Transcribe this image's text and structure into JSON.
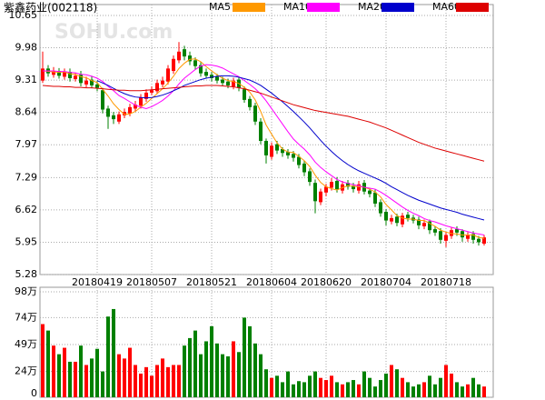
{
  "chart_data": {
    "type": "candlestick",
    "title": "紫鑫药业(002118)",
    "watermark": "SOHU.com",
    "categories": [
      null,
      null,
      null,
      null,
      null,
      null,
      null,
      null,
      null,
      null,
      "20180419",
      null,
      null,
      null,
      null,
      null,
      null,
      null,
      null,
      null,
      "20180507",
      null,
      null,
      null,
      null,
      null,
      null,
      null,
      null,
      null,
      null,
      "20180521",
      null,
      null,
      null,
      null,
      null,
      null,
      null,
      null,
      null,
      null,
      "20180604",
      null,
      null,
      null,
      null,
      null,
      null,
      null,
      null,
      null,
      "20180620",
      null,
      null,
      null,
      null,
      null,
      null,
      null,
      null,
      null,
      null,
      "20180704",
      null,
      null,
      null,
      null,
      null,
      null,
      null,
      null,
      null,
      null,
      "20180718",
      null,
      null,
      null,
      null,
      null,
      null,
      null
    ],
    "open": [
      9.3,
      9.55,
      9.42,
      9.5,
      9.38,
      9.48,
      9.33,
      9.42,
      9.22,
      9.32,
      9.22,
      9.1,
      8.72,
      8.58,
      8.45,
      8.58,
      8.62,
      8.72,
      8.78,
      8.92,
      9.05,
      9.08,
      9.22,
      9.28,
      9.5,
      9.72,
      9.95,
      9.82,
      9.72,
      9.62,
      9.48,
      9.42,
      9.38,
      9.32,
      9.28,
      9.18,
      9.32,
      9.12,
      8.92,
      8.78,
      8.45,
      8.05,
      7.72,
      7.98,
      7.88,
      7.82,
      7.78,
      7.72,
      7.58,
      7.42,
      7.18,
      6.78,
      6.98,
      7.08,
      7.22,
      7.02,
      7.18,
      7.12,
      7.02,
      7.18,
      7.02,
      6.98,
      6.78,
      6.58,
      6.38,
      6.48,
      6.32,
      6.52,
      6.46,
      6.42,
      6.28,
      6.38,
      6.22,
      6.18,
      5.98,
      6.08,
      6.22,
      6.18,
      6.02,
      6.12,
      6.02,
      5.92
    ],
    "high": [
      9.9,
      9.62,
      9.58,
      9.56,
      9.55,
      9.55,
      9.46,
      9.5,
      9.38,
      9.4,
      9.3,
      9.15,
      8.78,
      8.65,
      8.66,
      8.72,
      8.82,
      8.88,
      9.02,
      9.12,
      9.18,
      9.32,
      9.38,
      9.62,
      9.82,
      10.1,
      10.02,
      9.9,
      9.78,
      9.68,
      9.55,
      9.48,
      9.44,
      9.38,
      9.34,
      9.36,
      9.38,
      9.18,
      8.98,
      8.84,
      8.52,
      8.1,
      8.02,
      8.05,
      7.92,
      7.88,
      7.84,
      7.78,
      7.64,
      7.48,
      7.25,
      7.06,
      7.16,
      7.28,
      7.3,
      7.22,
      7.24,
      7.18,
      7.22,
      7.24,
      7.08,
      7.04,
      6.84,
      6.64,
      6.52,
      6.54,
      6.56,
      6.58,
      6.52,
      6.48,
      6.42,
      6.42,
      6.28,
      6.24,
      6.16,
      6.26,
      6.28,
      6.22,
      6.16,
      6.18,
      6.08,
      6.1
    ],
    "low": [
      9.25,
      9.38,
      9.36,
      9.34,
      9.32,
      9.28,
      9.28,
      9.18,
      9.16,
      9.14,
      9.08,
      8.62,
      8.3,
      8.4,
      8.4,
      8.52,
      8.56,
      8.66,
      8.72,
      8.86,
      9.0,
      9.02,
      9.16,
      9.22,
      9.44,
      9.66,
      9.72,
      9.62,
      9.52,
      9.38,
      9.34,
      9.28,
      9.24,
      9.18,
      9.14,
      9.12,
      9.08,
      8.84,
      8.68,
      8.38,
      7.98,
      7.58,
      7.66,
      7.78,
      7.72,
      7.68,
      7.62,
      7.48,
      7.32,
      7.12,
      6.55,
      6.72,
      6.9,
      7.02,
      6.98,
      6.96,
      7.04,
      6.98,
      6.96,
      6.94,
      6.88,
      6.68,
      6.48,
      6.3,
      6.32,
      6.28,
      6.26,
      6.38,
      6.34,
      6.22,
      6.22,
      6.12,
      6.08,
      5.92,
      5.85,
      6.02,
      6.08,
      5.96,
      5.96,
      5.92,
      5.88,
      5.88
    ],
    "close": [
      9.55,
      9.45,
      9.5,
      9.4,
      9.48,
      9.35,
      9.4,
      9.25,
      9.3,
      9.2,
      9.15,
      8.7,
      8.55,
      8.5,
      8.6,
      8.65,
      8.75,
      8.8,
      8.95,
      9.05,
      9.1,
      9.25,
      9.3,
      9.55,
      9.75,
      9.9,
      9.8,
      9.7,
      9.6,
      9.45,
      9.4,
      9.35,
      9.3,
      9.25,
      9.2,
      9.3,
      9.15,
      8.9,
      8.75,
      8.45,
      8.05,
      7.75,
      7.95,
      7.85,
      7.8,
      7.75,
      7.7,
      7.55,
      7.4,
      7.2,
      6.8,
      7.0,
      7.1,
      7.2,
      7.05,
      7.15,
      7.1,
      7.05,
      7.15,
      7.0,
      6.95,
      6.75,
      6.55,
      6.4,
      6.45,
      6.35,
      6.5,
      6.45,
      6.4,
      6.3,
      6.35,
      6.2,
      6.15,
      6.0,
      6.1,
      6.2,
      6.15,
      6.05,
      6.1,
      6.0,
      5.95,
      6.05
    ],
    "up_color": "#ff0000",
    "down_color": "#008000",
    "series": [
      {
        "name": "MA5",
        "color": "#ff9900",
        "values": [
          9.5,
          9.49,
          9.48,
          9.47,
          9.48,
          9.44,
          9.43,
          9.38,
          9.36,
          9.3,
          9.26,
          9.12,
          8.98,
          8.82,
          8.7,
          8.6,
          8.61,
          8.66,
          8.75,
          8.83,
          8.93,
          9.03,
          9.13,
          9.25,
          9.39,
          9.55,
          9.66,
          9.74,
          9.75,
          9.69,
          9.59,
          9.5,
          9.42,
          9.35,
          9.3,
          9.28,
          9.24,
          9.16,
          9.06,
          8.9,
          8.66,
          8.38,
          8.19,
          8.01,
          7.88,
          7.82,
          7.81,
          7.73,
          7.64,
          7.52,
          7.34,
          7.19,
          7.1,
          7.06,
          7.03,
          7.08,
          7.12,
          7.11,
          7.1,
          7.09,
          7.05,
          6.99,
          6.89,
          6.73,
          6.62,
          6.5,
          6.45,
          6.43,
          6.43,
          6.4,
          6.4,
          6.34,
          6.28,
          6.2,
          6.16,
          6.13,
          6.12,
          6.1,
          6.1,
          6.1,
          6.05,
          6.03
        ]
      },
      {
        "name": "MA10",
        "color": "#ff00ff",
        "values": [
          9.5,
          9.5,
          9.5,
          9.49,
          9.49,
          9.47,
          9.46,
          9.43,
          9.42,
          9.39,
          9.35,
          9.28,
          9.18,
          9.09,
          8.99,
          8.93,
          8.86,
          8.79,
          8.75,
          8.72,
          8.76,
          8.82,
          8.89,
          8.98,
          9.09,
          9.23,
          9.35,
          9.44,
          9.53,
          9.6,
          9.63,
          9.62,
          9.6,
          9.56,
          9.5,
          9.44,
          9.38,
          9.3,
          9.22,
          9.13,
          9.02,
          8.88,
          8.72,
          8.56,
          8.4,
          8.24,
          8.09,
          7.98,
          7.88,
          7.76,
          7.61,
          7.5,
          7.41,
          7.33,
          7.25,
          7.2,
          7.17,
          7.14,
          7.12,
          7.09,
          7.07,
          7.05,
          6.99,
          6.92,
          6.84,
          6.76,
          6.68,
          6.61,
          6.55,
          6.5,
          6.44,
          6.4,
          6.37,
          6.33,
          6.29,
          6.26,
          6.23,
          6.2,
          6.17,
          6.14,
          6.12,
          6.1
        ]
      },
      {
        "name": "MA20",
        "color": "#0000cc",
        "values": [
          null,
          null,
          null,
          null,
          null,
          null,
          null,
          null,
          null,
          null,
          9.3,
          9.25,
          9.2,
          9.14,
          9.08,
          9.03,
          8.99,
          8.96,
          8.95,
          8.94,
          8.95,
          8.97,
          9.0,
          9.04,
          9.09,
          9.14,
          9.2,
          9.24,
          9.28,
          9.32,
          9.35,
          9.37,
          9.39,
          9.4,
          9.4,
          9.39,
          9.37,
          9.34,
          9.31,
          9.26,
          9.2,
          9.12,
          9.04,
          8.95,
          8.86,
          8.76,
          8.66,
          8.55,
          8.44,
          8.32,
          8.19,
          8.06,
          7.94,
          7.83,
          7.73,
          7.64,
          7.56,
          7.49,
          7.43,
          7.38,
          7.33,
          7.28,
          7.23,
          7.17,
          7.1,
          7.04,
          6.98,
          6.92,
          6.87,
          6.82,
          6.78,
          6.74,
          6.7,
          6.66,
          6.63,
          6.6,
          6.57,
          6.53,
          6.5,
          6.47,
          6.44,
          6.41
        ]
      },
      {
        "name": "MA60",
        "color": "#dd0000",
        "values": [
          9.2,
          9.19,
          9.18,
          9.18,
          9.17,
          9.17,
          9.16,
          9.16,
          9.15,
          9.15,
          9.14,
          9.13,
          9.12,
          9.11,
          9.1,
          9.1,
          9.09,
          9.09,
          9.09,
          9.1,
          9.11,
          9.12,
          9.13,
          9.14,
          9.15,
          9.16,
          9.17,
          9.18,
          9.19,
          9.19,
          9.2,
          9.2,
          9.2,
          9.19,
          9.18,
          9.17,
          9.15,
          9.13,
          9.1,
          9.07,
          9.04,
          9.0,
          8.96,
          8.92,
          8.88,
          8.84,
          8.8,
          8.77,
          8.74,
          8.71,
          8.68,
          8.66,
          8.64,
          8.62,
          8.6,
          8.58,
          8.56,
          8.53,
          8.5,
          8.47,
          8.44,
          8.4,
          8.36,
          8.32,
          8.27,
          8.22,
          8.17,
          8.12,
          8.07,
          8.02,
          7.98,
          7.94,
          7.9,
          7.87,
          7.84,
          7.81,
          7.78,
          7.75,
          7.72,
          7.69,
          7.66,
          7.63
        ]
      }
    ],
    "ylim": [
      5.28,
      10.65
    ],
    "yticks": [
      10.65,
      9.98,
      9.31,
      8.64,
      7.97,
      7.29,
      6.62,
      5.95,
      5.28
    ],
    "grid": true,
    "volume": {
      "values": [
        68,
        62,
        48,
        40,
        46,
        33,
        33,
        48,
        30,
        36,
        45,
        24,
        75,
        82,
        40,
        36,
        46,
        30,
        22,
        28,
        20,
        30,
        36,
        28,
        30,
        30,
        48,
        55,
        62,
        40,
        52,
        66,
        50,
        40,
        38,
        52,
        42,
        74,
        66,
        50,
        40,
        26,
        18,
        20,
        14,
        24,
        12,
        15,
        14,
        20,
        24,
        18,
        16,
        20,
        14,
        12,
        14,
        16,
        12,
        24,
        18,
        10,
        16,
        22,
        30,
        26,
        18,
        14,
        10,
        12,
        14,
        20,
        12,
        18,
        30,
        22,
        14,
        10,
        12,
        18,
        12,
        10
      ],
      "ylim": [
        0,
        98
      ],
      "yticks": [
        {
          "value": 98,
          "label": "98万"
        },
        {
          "value": 74,
          "label": "74万"
        },
        {
          "value": 49,
          "label": "49万"
        },
        {
          "value": 24,
          "label": "24万"
        },
        0
      ]
    }
  }
}
